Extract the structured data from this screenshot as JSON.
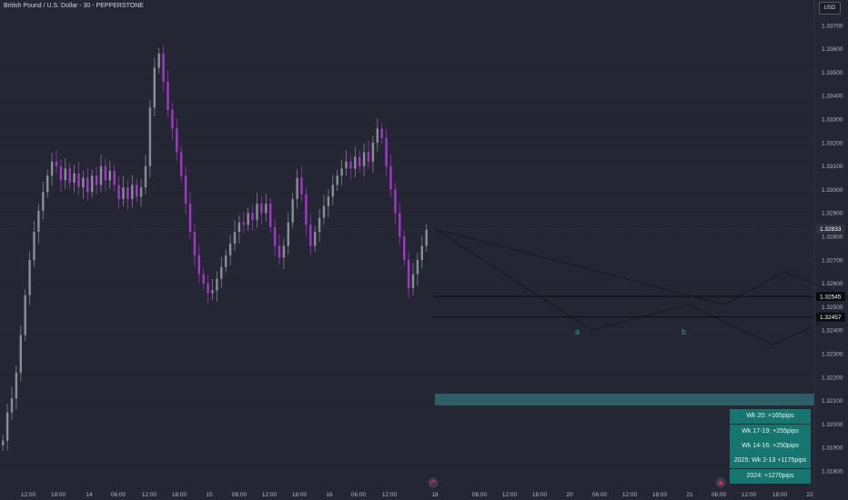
{
  "header": {
    "title": "British Pound / U.S. Dollar - 30 - PEPPERSTONE",
    "currency": "USD"
  },
  "colors": {
    "background": "#242733",
    "up_candle": "#8a8d96",
    "down_candle": "#a336c9",
    "projection_line": "#14171c",
    "level_line": "#0a0b0f",
    "box": "#2e5f66",
    "stats_bg": "#17756f",
    "wave_label": "#26a69a"
  },
  "chart_data": {
    "type": "candlestick",
    "symbol": "GBPUSD",
    "timeframe": "30",
    "y_ticks": [
      "1.33700",
      "1.33600",
      "1.33500",
      "1.33400",
      "1.33300",
      "1.33200",
      "1.33100",
      "1.33000",
      "1.32900",
      "1.32800",
      "1.32700",
      "1.32600",
      "1.32500",
      "1.32400",
      "1.32300",
      "1.32200",
      "1.32100",
      "1.32000",
      "1.31900",
      "1.31800"
    ],
    "ylim": [
      1.3175,
      1.3378
    ],
    "x_ticks": [
      "12:00",
      "18:00",
      "14",
      "06:00",
      "12:00",
      "18:00",
      "15",
      "06:00",
      "12:00",
      "18:00",
      "16",
      "06:00",
      "12:00",
      "18",
      "06:00",
      "12:00",
      "18:00",
      "20",
      "06:00",
      "12:00",
      "18:00",
      "21",
      "06:00",
      "12:00",
      "18:00",
      "22"
    ],
    "price_tags": [
      {
        "label": "1.32833",
        "value": 1.32833,
        "style": "dashed-current"
      },
      {
        "label": "1.32545",
        "value": 1.32545,
        "style": "line"
      },
      {
        "label": "1.32457",
        "value": 1.32457,
        "style": "line"
      }
    ],
    "close_path": [
      1.3193,
      1.3205,
      1.3211,
      1.3222,
      1.3238,
      1.3255,
      1.327,
      1.3282,
      1.3291,
      1.3299,
      1.3306,
      1.3312,
      1.331,
      1.3304,
      1.3309,
      1.3303,
      1.3307,
      1.3301,
      1.3305,
      1.3299,
      1.3306,
      1.3302,
      1.331,
      1.3304,
      1.3308,
      1.3302,
      1.3296,
      1.3301,
      1.3296,
      1.3302,
      1.3297,
      1.3301,
      1.331,
      1.3335,
      1.3352,
      1.3358,
      1.3346,
      1.3334,
      1.3326,
      1.3316,
      1.3306,
      1.3294,
      1.3282,
      1.3272,
      1.3264,
      1.326,
      1.3256,
      1.3257,
      1.3262,
      1.3267,
      1.3272,
      1.3277,
      1.3282,
      1.3286,
      1.3285,
      1.329,
      1.3287,
      1.3294,
      1.329,
      1.3294,
      1.3284,
      1.3276,
      1.3271,
      1.3276,
      1.3286,
      1.3296,
      1.3305,
      1.3298,
      1.3285,
      1.3276,
      1.3282,
      1.3288,
      1.3293,
      1.3297,
      1.3302,
      1.3306,
      1.3309,
      1.3312,
      1.3309,
      1.3314,
      1.331,
      1.3316,
      1.3312,
      1.332,
      1.3326,
      1.3322,
      1.331,
      1.33,
      1.329,
      1.328,
      1.327,
      1.3258,
      1.3264,
      1.327,
      1.3276,
      1.3283
    ],
    "projection": {
      "path_1": [
        [
          18.0,
          1.32833
        ],
        [
          19.3,
          1.324
        ],
        [
          20.1,
          1.3251
        ],
        [
          20.8,
          1.3234
        ],
        [
          21.2,
          1.3243
        ]
      ],
      "path_2": [
        [
          18.0,
          1.32833
        ],
        [
          20.4,
          1.3251
        ],
        [
          20.9,
          1.3265
        ],
        [
          22.4,
          1.3234
        ],
        [
          22.9,
          1.3244
        ]
      ],
      "labels": [
        "a",
        "b"
      ]
    },
    "target_box": {
      "from": 1.3208,
      "to": 1.3213
    },
    "stats": [
      "Wk 20: +165pips",
      "Wk 17-19: +255pips",
      "Wk 14-16: +250pips",
      "2025: Wk 2-13 +1175pips",
      "2024: +1270pips"
    ]
  }
}
